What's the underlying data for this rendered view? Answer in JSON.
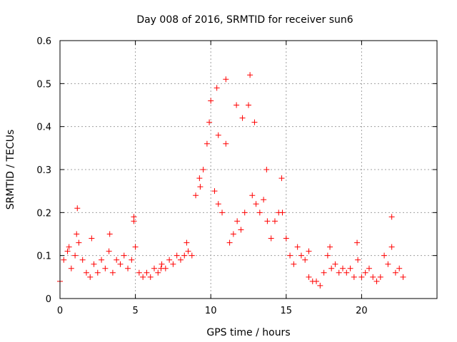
{
  "chart_data": {
    "type": "scatter",
    "title": "Day 008 of 2016, SRMTID for receiver sun6",
    "xlabel": "GPS time / hours",
    "ylabel": "SRMTID / TECUs",
    "xlim": [
      0,
      25
    ],
    "ylim": [
      0,
      0.6
    ],
    "xticks": [
      0,
      5,
      10,
      15,
      20
    ],
    "xtick_labels": [
      "0",
      "5",
      "10",
      "15",
      "20"
    ],
    "yticks": [
      0,
      0.1,
      0.2,
      0.3,
      0.4,
      0.5,
      0.6
    ],
    "ytick_labels": [
      "0",
      "0.1",
      "0.2",
      "0.3",
      "0.4",
      "0.5",
      "0.6"
    ],
    "grid": true,
    "marker": "+",
    "color": "#ff0000",
    "series": [
      {
        "name": "SRMTID",
        "x": [
          0.0,
          0.25,
          0.5,
          0.75,
          1.0,
          1.15,
          1.25,
          1.5,
          1.75,
          2.0,
          2.25,
          2.5,
          2.75,
          3.0,
          3.25,
          3.5,
          3.75,
          4.0,
          4.25,
          4.5,
          4.75,
          4.9,
          5.0,
          5.25,
          5.5,
          5.75,
          6.0,
          6.25,
          6.5,
          6.75,
          7.0,
          7.25,
          7.5,
          7.75,
          8.0,
          8.25,
          8.5,
          8.75,
          9.0,
          9.25,
          9.5,
          9.75,
          10.0,
          10.25,
          10.5,
          10.75,
          11.0,
          11.25,
          11.5,
          11.75,
          12.0,
          12.25,
          12.5,
          12.75,
          13.0,
          13.25,
          13.5,
          13.75,
          14.0,
          14.25,
          14.5,
          14.75,
          15.0,
          15.25,
          15.5,
          15.75,
          16.0,
          16.25,
          16.5,
          16.75,
          17.0,
          17.25,
          17.5,
          17.75,
          18.0,
          18.25,
          18.5,
          18.75,
          19.0,
          19.25,
          19.5,
          19.75,
          20.0,
          20.25,
          20.5,
          20.75,
          21.0,
          21.25,
          21.5,
          21.75,
          22.0,
          22.25,
          22.5,
          22.75,
          10.4,
          11.0,
          12.6,
          12.1,
          11.7,
          13.7,
          9.9,
          10.5,
          1.1,
          4.9,
          22.0,
          9.3,
          14.7,
          12.9,
          0.6,
          3.3,
          8.4,
          16.5,
          17.9,
          19.7,
          2.1,
          6.7
        ],
        "y": [
          0.04,
          0.09,
          0.11,
          0.07,
          0.1,
          0.21,
          0.13,
          0.09,
          0.06,
          0.05,
          0.08,
          0.06,
          0.09,
          0.07,
          0.11,
          0.06,
          0.09,
          0.08,
          0.1,
          0.07,
          0.09,
          0.18,
          0.12,
          0.06,
          0.05,
          0.06,
          0.05,
          0.07,
          0.06,
          0.08,
          0.07,
          0.09,
          0.08,
          0.1,
          0.09,
          0.1,
          0.11,
          0.1,
          0.24,
          0.28,
          0.3,
          0.36,
          0.46,
          0.25,
          0.22,
          0.2,
          0.36,
          0.13,
          0.15,
          0.18,
          0.16,
          0.2,
          0.45,
          0.24,
          0.22,
          0.2,
          0.23,
          0.18,
          0.14,
          0.18,
          0.2,
          0.2,
          0.14,
          0.1,
          0.08,
          0.12,
          0.1,
          0.09,
          0.05,
          0.04,
          0.04,
          0.03,
          0.06,
          0.1,
          0.07,
          0.08,
          0.06,
          0.07,
          0.06,
          0.07,
          0.05,
          0.09,
          0.05,
          0.06,
          0.07,
          0.05,
          0.04,
          0.05,
          0.1,
          0.08,
          0.12,
          0.06,
          0.07,
          0.05,
          0.49,
          0.51,
          0.52,
          0.42,
          0.45,
          0.3,
          0.41,
          0.38,
          0.15,
          0.19,
          0.19,
          0.26,
          0.28,
          0.41,
          0.12,
          0.15,
          0.13,
          0.11,
          0.12,
          0.13,
          0.14,
          0.07
        ]
      }
    ]
  }
}
